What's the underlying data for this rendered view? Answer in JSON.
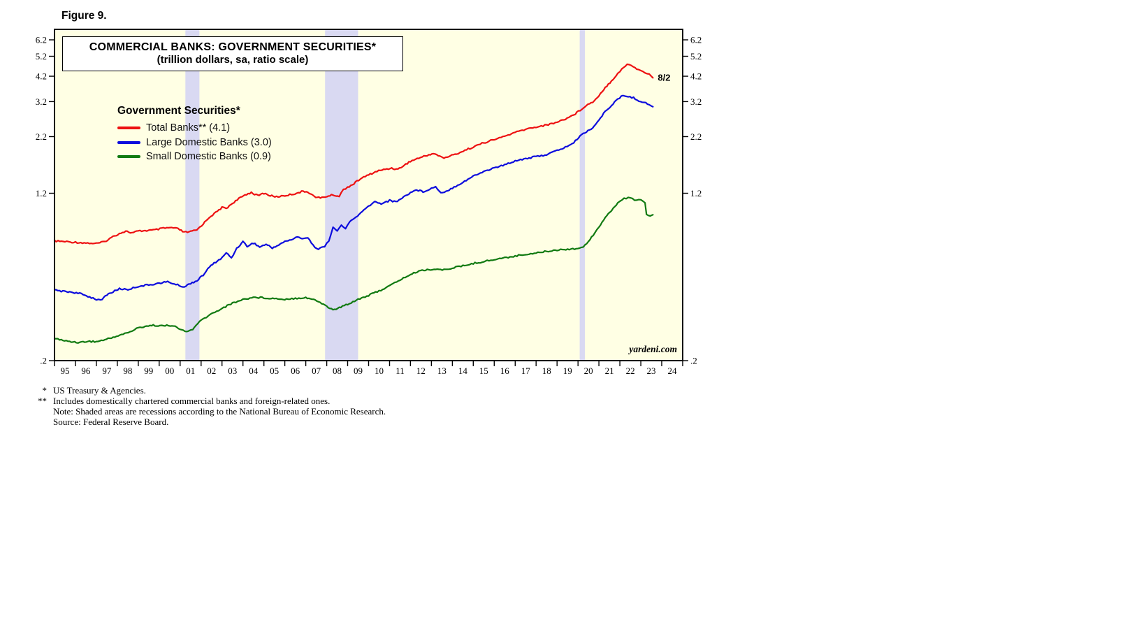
{
  "figure_label": "Figure 9.",
  "chart": {
    "title_line1": "COMMERCIAL BANKS: GOVERNMENT SECURITIES*",
    "title_line2": "(trillion dollars, sa, ratio scale)",
    "watermark": "yardeni.com",
    "end_label": "8/2",
    "colors": {
      "background": "#ffffe4",
      "recession_band": "#d9d9f2",
      "frame": "#000000",
      "red": "#ed1111",
      "blue": "#0c0cdd",
      "green": "#117a11"
    },
    "y_ticks": [
      {
        "v": 6.2,
        "label": "6.2"
      },
      {
        "v": 5.2,
        "label": "5.2"
      },
      {
        "v": 4.2,
        "label": "4.2"
      },
      {
        "v": 3.2,
        "label": "3.2"
      },
      {
        "v": 2.2,
        "label": "2.2"
      },
      {
        "v": 1.2,
        "label": "1.2"
      },
      {
        "v": 0.2,
        "label": ".2"
      }
    ],
    "x_year_labels": [
      "95",
      "96",
      "97",
      "98",
      "99",
      "00",
      "01",
      "02",
      "03",
      "04",
      "05",
      "06",
      "07",
      "08",
      "09",
      "10",
      "11",
      "12",
      "13",
      "14",
      "15",
      "16",
      "17",
      "18",
      "19",
      "20",
      "21",
      "22",
      "23",
      "24"
    ],
    "legend": {
      "title": "Government Securities*",
      "items": [
        {
          "label": "Total Banks** (4.1)",
          "color_key": "red"
        },
        {
          "label": "Large Domestic Banks (3.0)",
          "color_key": "blue"
        },
        {
          "label": "Small Domestic Banks (0.9)",
          "color_key": "green"
        }
      ]
    }
  },
  "chart_data": {
    "type": "line",
    "title": "COMMERCIAL BANKS: GOVERNMENT SECURITIES*",
    "subtitle": "(trillion dollars, sa, ratio scale)",
    "y_scale": "log",
    "ylim": [
      0.2,
      6.2
    ],
    "x_range": [
      1995,
      2025
    ],
    "x_unit": "decimal year",
    "grid": false,
    "legend_position": "upper-left-inside",
    "recession_bands": [
      [
        2001.25,
        2001.92
      ],
      [
        2007.92,
        2009.5
      ],
      [
        2020.08,
        2020.33
      ]
    ],
    "series": [
      {
        "id": "total-banks",
        "name": "Total Banks**",
        "latest_value": 4.1,
        "latest_label": "8/2",
        "color": "#ed1111",
        "points": [
          [
            1995.0,
            0.72
          ],
          [
            1995.5,
            0.715
          ],
          [
            1996.0,
            0.71
          ],
          [
            1996.5,
            0.705
          ],
          [
            1997.0,
            0.7
          ],
          [
            1997.4,
            0.715
          ],
          [
            1997.8,
            0.755
          ],
          [
            1998.1,
            0.78
          ],
          [
            1998.4,
            0.8
          ],
          [
            1998.7,
            0.785
          ],
          [
            1999.0,
            0.8
          ],
          [
            1999.4,
            0.805
          ],
          [
            1999.8,
            0.81
          ],
          [
            2000.2,
            0.825
          ],
          [
            2000.6,
            0.83
          ],
          [
            2000.9,
            0.82
          ],
          [
            2001.2,
            0.79
          ],
          [
            2001.5,
            0.795
          ],
          [
            2001.8,
            0.81
          ],
          [
            2002.1,
            0.865
          ],
          [
            2002.4,
            0.93
          ],
          [
            2002.7,
            0.975
          ],
          [
            2003.0,
            1.03
          ],
          [
            2003.2,
            1.02
          ],
          [
            2003.5,
            1.08
          ],
          [
            2003.8,
            1.13
          ],
          [
            2004.1,
            1.18
          ],
          [
            2004.4,
            1.21
          ],
          [
            2004.7,
            1.17
          ],
          [
            2005.0,
            1.2
          ],
          [
            2005.3,
            1.17
          ],
          [
            2005.6,
            1.155
          ],
          [
            2006.0,
            1.17
          ],
          [
            2006.4,
            1.19
          ],
          [
            2006.8,
            1.22
          ],
          [
            2007.1,
            1.22
          ],
          [
            2007.4,
            1.16
          ],
          [
            2007.7,
            1.14
          ],
          [
            2008.0,
            1.16
          ],
          [
            2008.3,
            1.18
          ],
          [
            2008.6,
            1.16
          ],
          [
            2008.8,
            1.25
          ],
          [
            2009.0,
            1.28
          ],
          [
            2009.3,
            1.33
          ],
          [
            2009.6,
            1.4
          ],
          [
            2010.0,
            1.46
          ],
          [
            2010.4,
            1.52
          ],
          [
            2010.8,
            1.55
          ],
          [
            2011.1,
            1.57
          ],
          [
            2011.4,
            1.55
          ],
          [
            2011.7,
            1.62
          ],
          [
            2012.0,
            1.69
          ],
          [
            2012.4,
            1.75
          ],
          [
            2012.8,
            1.8
          ],
          [
            2013.1,
            1.84
          ],
          [
            2013.4,
            1.78
          ],
          [
            2013.6,
            1.75
          ],
          [
            2013.9,
            1.79
          ],
          [
            2014.2,
            1.83
          ],
          [
            2014.6,
            1.9
          ],
          [
            2015.0,
            1.97
          ],
          [
            2015.5,
            2.06
          ],
          [
            2016.0,
            2.13
          ],
          [
            2016.5,
            2.21
          ],
          [
            2017.0,
            2.3
          ],
          [
            2017.5,
            2.38
          ],
          [
            2018.0,
            2.44
          ],
          [
            2018.5,
            2.49
          ],
          [
            2019.0,
            2.57
          ],
          [
            2019.4,
            2.66
          ],
          [
            2019.8,
            2.78
          ],
          [
            2020.1,
            2.92
          ],
          [
            2020.4,
            3.08
          ],
          [
            2020.7,
            3.18
          ],
          [
            2021.0,
            3.42
          ],
          [
            2021.3,
            3.72
          ],
          [
            2021.6,
            4.0
          ],
          [
            2021.9,
            4.32
          ],
          [
            2022.1,
            4.55
          ],
          [
            2022.35,
            4.75
          ],
          [
            2022.55,
            4.72
          ],
          [
            2022.8,
            4.55
          ],
          [
            2023.0,
            4.45
          ],
          [
            2023.2,
            4.38
          ],
          [
            2023.4,
            4.28
          ],
          [
            2023.58,
            4.12
          ]
        ]
      },
      {
        "id": "large-domestic-banks",
        "name": "Large Domestic Banks",
        "latest_value": 3.0,
        "color": "#0c0cdd",
        "points": [
          [
            1995.0,
            0.425
          ],
          [
            1995.4,
            0.42
          ],
          [
            1995.8,
            0.417
          ],
          [
            1996.2,
            0.41
          ],
          [
            1996.6,
            0.398
          ],
          [
            1997.0,
            0.386
          ],
          [
            1997.2,
            0.38
          ],
          [
            1997.5,
            0.405
          ],
          [
            1997.8,
            0.418
          ],
          [
            1998.1,
            0.432
          ],
          [
            1998.5,
            0.428
          ],
          [
            1999.0,
            0.443
          ],
          [
            1999.5,
            0.45
          ],
          [
            2000.0,
            0.458
          ],
          [
            2000.4,
            0.465
          ],
          [
            2000.8,
            0.452
          ],
          [
            2001.2,
            0.44
          ],
          [
            2001.5,
            0.458
          ],
          [
            2001.8,
            0.47
          ],
          [
            2002.1,
            0.5
          ],
          [
            2002.4,
            0.545
          ],
          [
            2002.7,
            0.575
          ],
          [
            2003.0,
            0.6
          ],
          [
            2003.2,
            0.635
          ],
          [
            2003.45,
            0.6
          ],
          [
            2003.7,
            0.665
          ],
          [
            2004.0,
            0.715
          ],
          [
            2004.2,
            0.68
          ],
          [
            2004.5,
            0.705
          ],
          [
            2004.8,
            0.675
          ],
          [
            2005.1,
            0.695
          ],
          [
            2005.4,
            0.668
          ],
          [
            2005.7,
            0.69
          ],
          [
            2006.0,
            0.715
          ],
          [
            2006.3,
            0.73
          ],
          [
            2006.6,
            0.75
          ],
          [
            2006.9,
            0.74
          ],
          [
            2007.1,
            0.748
          ],
          [
            2007.35,
            0.685
          ],
          [
            2007.6,
            0.662
          ],
          [
            2007.9,
            0.678
          ],
          [
            2008.1,
            0.72
          ],
          [
            2008.3,
            0.84
          ],
          [
            2008.5,
            0.795
          ],
          [
            2008.7,
            0.855
          ],
          [
            2008.9,
            0.82
          ],
          [
            2009.1,
            0.885
          ],
          [
            2009.4,
            0.93
          ],
          [
            2009.7,
            0.985
          ],
          [
            2010.0,
            1.045
          ],
          [
            2010.3,
            1.095
          ],
          [
            2010.6,
            1.075
          ],
          [
            2011.0,
            1.11
          ],
          [
            2011.3,
            1.095
          ],
          [
            2011.6,
            1.14
          ],
          [
            2012.0,
            1.21
          ],
          [
            2012.3,
            1.245
          ],
          [
            2012.6,
            1.22
          ],
          [
            2013.0,
            1.265
          ],
          [
            2013.2,
            1.285
          ],
          [
            2013.45,
            1.21
          ],
          [
            2013.7,
            1.225
          ],
          [
            2014.0,
            1.27
          ],
          [
            2014.5,
            1.35
          ],
          [
            2015.0,
            1.44
          ],
          [
            2015.5,
            1.515
          ],
          [
            2016.0,
            1.575
          ],
          [
            2016.5,
            1.625
          ],
          [
            2017.0,
            1.7
          ],
          [
            2017.5,
            1.74
          ],
          [
            2018.0,
            1.775
          ],
          [
            2018.5,
            1.815
          ],
          [
            2019.0,
            1.895
          ],
          [
            2019.4,
            1.965
          ],
          [
            2019.8,
            2.06
          ],
          [
            2020.1,
            2.22
          ],
          [
            2020.4,
            2.32
          ],
          [
            2020.7,
            2.42
          ],
          [
            2021.0,
            2.62
          ],
          [
            2021.3,
            2.88
          ],
          [
            2021.6,
            3.08
          ],
          [
            2021.9,
            3.28
          ],
          [
            2022.15,
            3.42
          ],
          [
            2022.4,
            3.38
          ],
          [
            2022.65,
            3.33
          ],
          [
            2022.9,
            3.24
          ],
          [
            2023.15,
            3.17
          ],
          [
            2023.4,
            3.1
          ],
          [
            2023.58,
            3.04
          ]
        ]
      },
      {
        "id": "small-domestic-banks",
        "name": "Small Domestic Banks",
        "latest_value": 0.9,
        "color": "#117a11",
        "points": [
          [
            1995.0,
            0.255
          ],
          [
            1995.4,
            0.248
          ],
          [
            1995.8,
            0.245
          ],
          [
            1996.2,
            0.243
          ],
          [
            1996.6,
            0.246
          ],
          [
            1997.0,
            0.245
          ],
          [
            1997.4,
            0.25
          ],
          [
            1997.8,
            0.257
          ],
          [
            1998.2,
            0.264
          ],
          [
            1998.6,
            0.272
          ],
          [
            1999.0,
            0.284
          ],
          [
            1999.4,
            0.29
          ],
          [
            1999.8,
            0.292
          ],
          [
            2000.2,
            0.29
          ],
          [
            2000.6,
            0.292
          ],
          [
            2001.0,
            0.28
          ],
          [
            2001.3,
            0.272
          ],
          [
            2001.6,
            0.28
          ],
          [
            2002.0,
            0.308
          ],
          [
            2002.5,
            0.33
          ],
          [
            2003.0,
            0.35
          ],
          [
            2003.5,
            0.37
          ],
          [
            2004.0,
            0.385
          ],
          [
            2004.5,
            0.394
          ],
          [
            2005.0,
            0.392
          ],
          [
            2005.5,
            0.389
          ],
          [
            2006.0,
            0.386
          ],
          [
            2006.5,
            0.39
          ],
          [
            2007.0,
            0.393
          ],
          [
            2007.3,
            0.386
          ],
          [
            2007.6,
            0.377
          ],
          [
            2008.0,
            0.358
          ],
          [
            2008.3,
            0.344
          ],
          [
            2008.6,
            0.352
          ],
          [
            2009.0,
            0.366
          ],
          [
            2009.5,
            0.386
          ],
          [
            2010.0,
            0.402
          ],
          [
            2010.5,
            0.422
          ],
          [
            2011.0,
            0.445
          ],
          [
            2011.5,
            0.475
          ],
          [
            2012.0,
            0.502
          ],
          [
            2012.4,
            0.522
          ],
          [
            2012.8,
            0.53
          ],
          [
            2013.2,
            0.532
          ],
          [
            2013.6,
            0.528
          ],
          [
            2014.0,
            0.54
          ],
          [
            2014.5,
            0.551
          ],
          [
            2015.0,
            0.566
          ],
          [
            2015.5,
            0.578
          ],
          [
            2016.0,
            0.59
          ],
          [
            2016.5,
            0.601
          ],
          [
            2017.0,
            0.613
          ],
          [
            2017.5,
            0.624
          ],
          [
            2018.0,
            0.634
          ],
          [
            2018.5,
            0.644
          ],
          [
            2019.0,
            0.654
          ],
          [
            2019.5,
            0.66
          ],
          [
            2020.0,
            0.665
          ],
          [
            2020.25,
            0.672
          ],
          [
            2020.5,
            0.72
          ],
          [
            2020.8,
            0.785
          ],
          [
            2021.0,
            0.84
          ],
          [
            2021.3,
            0.92
          ],
          [
            2021.6,
            1.0
          ],
          [
            2021.9,
            1.08
          ],
          [
            2022.1,
            1.12
          ],
          [
            2022.3,
            1.14
          ],
          [
            2022.5,
            1.15
          ],
          [
            2022.7,
            1.105
          ],
          [
            2022.9,
            1.13
          ],
          [
            2023.1,
            1.105
          ],
          [
            2023.2,
            1.08
          ],
          [
            2023.27,
            0.95
          ],
          [
            2023.45,
            0.938
          ],
          [
            2023.58,
            0.945
          ]
        ]
      }
    ]
  },
  "footnotes": [
    {
      "marker": "*",
      "text": "US Treasury & Agencies."
    },
    {
      "marker": "**",
      "text": "Includes domestically chartered commercial banks and foreign-related ones."
    },
    {
      "marker": "",
      "text": "Note: Shaded areas are recessions according to the National Bureau of Economic Research."
    },
    {
      "marker": "",
      "text": "Source: Federal Reserve Board."
    }
  ]
}
